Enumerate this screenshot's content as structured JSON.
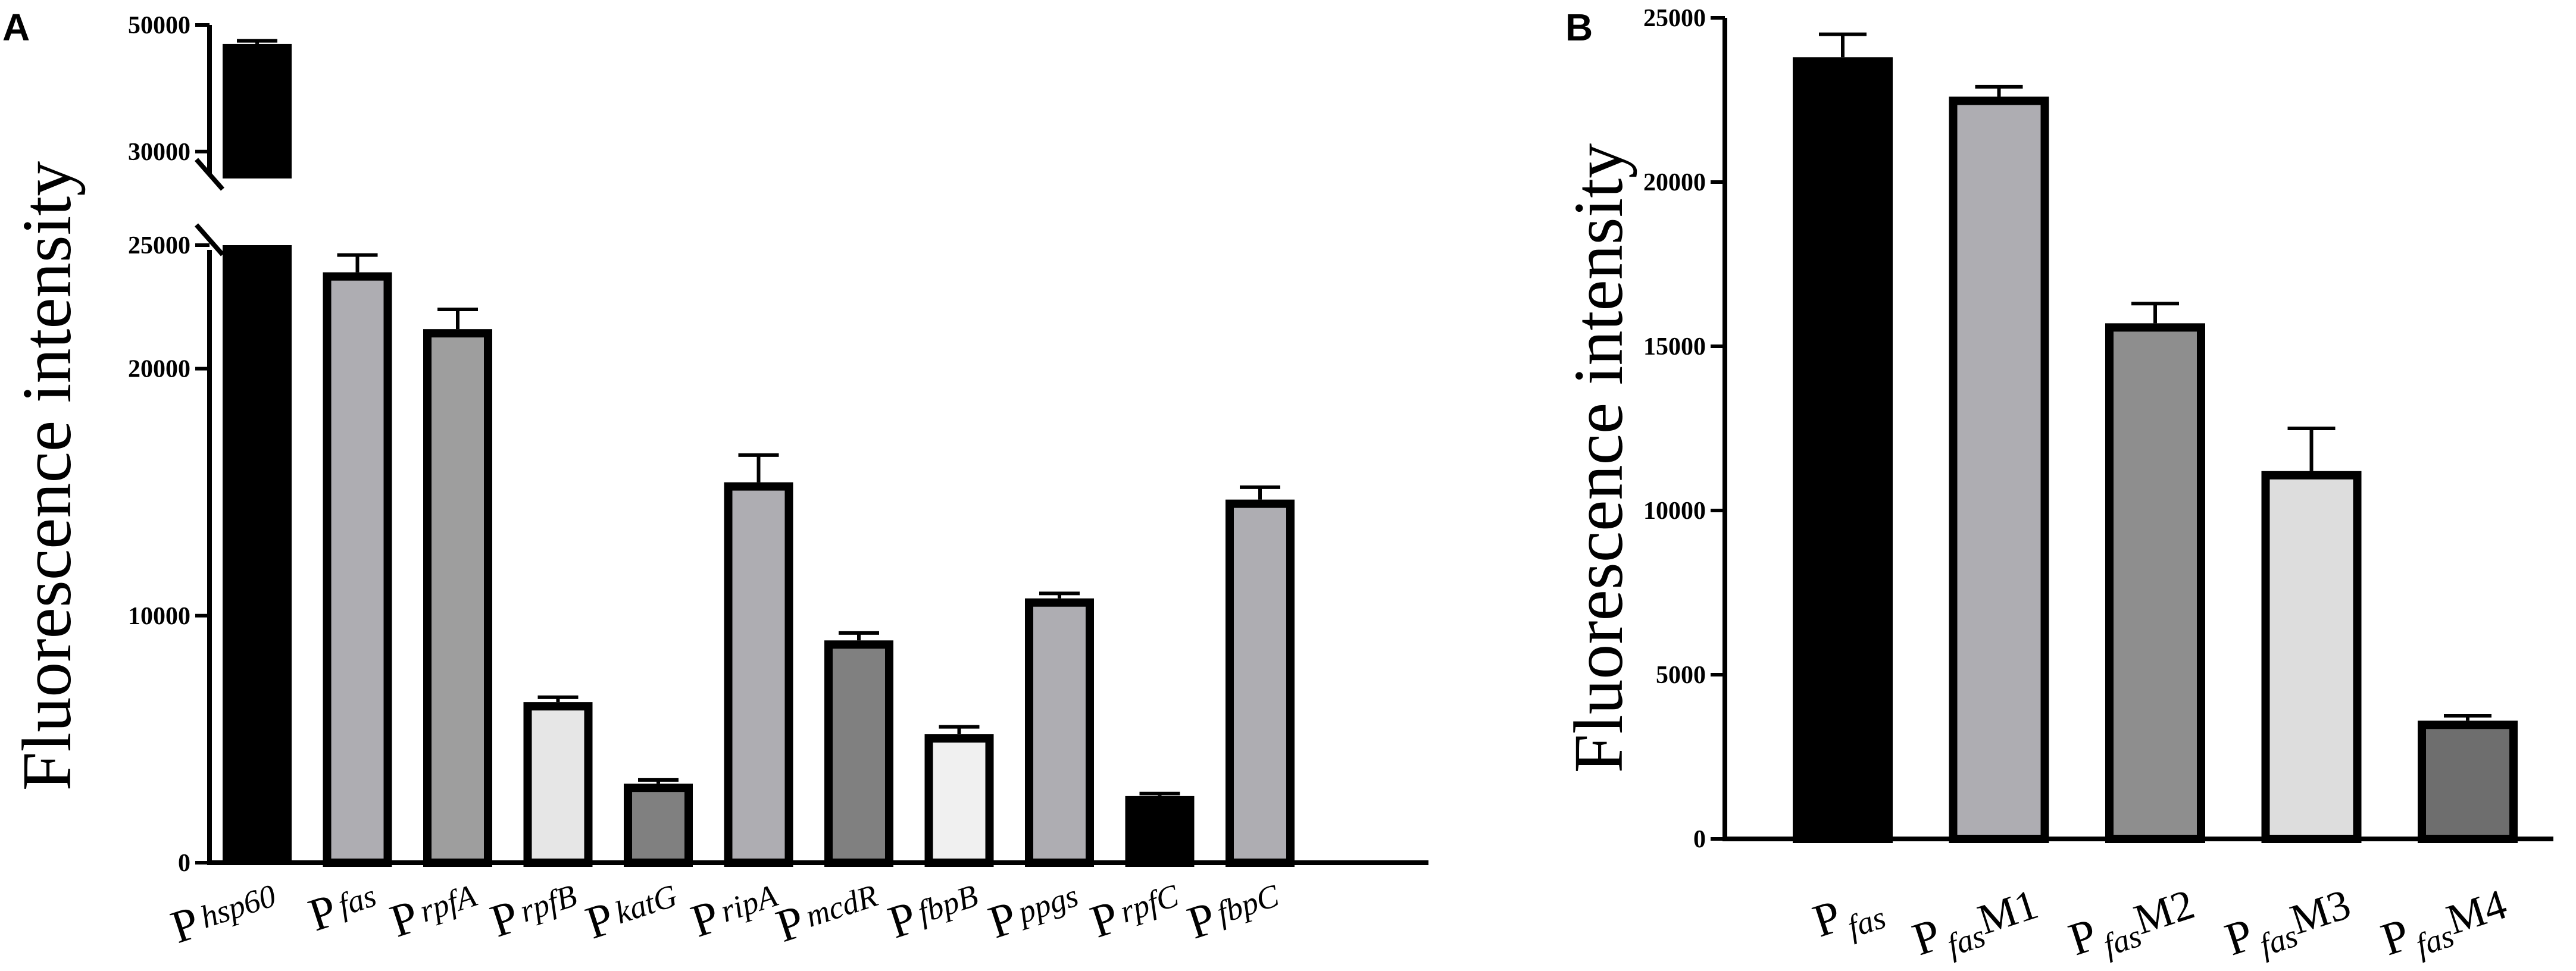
{
  "chart_data": [
    {
      "panel": "A",
      "type": "bar",
      "ylabel": "Fluorescence intensity",
      "xlabel": "",
      "title": "",
      "axis_break": true,
      "ylim_lower": [
        0,
        25000
      ],
      "ylim_upper": [
        25000,
        50000
      ],
      "yticks": [
        "0",
        "10000",
        "20000",
        "25000",
        "30000",
        "50000"
      ],
      "categories": [
        {
          "prefix": "P",
          "sub": "hsp60",
          "suffix": ""
        },
        {
          "prefix": "P",
          "sub": "fas",
          "suffix": ""
        },
        {
          "prefix": "P",
          "sub": "rpfA",
          "suffix": ""
        },
        {
          "prefix": "P",
          "sub": "rpfB",
          "suffix": ""
        },
        {
          "prefix": "P",
          "sub": "katG",
          "suffix": ""
        },
        {
          "prefix": "P",
          "sub": "ripA",
          "suffix": ""
        },
        {
          "prefix": "P",
          "sub": "mcdR",
          "suffix": ""
        },
        {
          "prefix": "P",
          "sub": "fbpB",
          "suffix": ""
        },
        {
          "prefix": "P",
          "sub": "ppgs",
          "suffix": ""
        },
        {
          "prefix": "P",
          "sub": "rpfC",
          "suffix": ""
        },
        {
          "prefix": "P",
          "sub": "fbpC",
          "suffix": ""
        }
      ],
      "values": [
        47000,
        23900,
        21600,
        6500,
        3200,
        15400,
        9000,
        5200,
        10700,
        2700,
        14700
      ],
      "errors": [
        500,
        700,
        800,
        200,
        150,
        1100,
        300,
        300,
        200,
        100,
        500
      ],
      "colors": [
        "#000000",
        "#aeadb2",
        "#9e9e9e",
        "#e6e6e6",
        "#808080",
        "#aeadb2",
        "#808080",
        "#f0f0f0",
        "#aeadb2",
        "#000000",
        "#aeadb2"
      ]
    },
    {
      "panel": "B",
      "type": "bar",
      "ylabel": "Fluorescence intensity",
      "xlabel": "",
      "title": "",
      "ylim": [
        0,
        25000
      ],
      "yticks": [
        "0",
        "5000",
        "10000",
        "15000",
        "20000",
        "25000"
      ],
      "categories": [
        {
          "prefix": "P",
          "sub": "fas",
          "suffix": ""
        },
        {
          "prefix": "P",
          "sub": "fas",
          "suffix": "M1"
        },
        {
          "prefix": "P",
          "sub": "fas",
          "suffix": "M2"
        },
        {
          "prefix": "P",
          "sub": "fas",
          "suffix": "M3"
        },
        {
          "prefix": "P",
          "sub": "fas",
          "suffix": "M4"
        }
      ],
      "values": [
        23800,
        22600,
        15700,
        11200,
        3600
      ],
      "errors": [
        700,
        300,
        600,
        1300,
        150
      ],
      "colors": [
        "#000000",
        "#aeadb2",
        "#8e8e8e",
        "#dddddd",
        "#6e6e6e"
      ]
    }
  ]
}
